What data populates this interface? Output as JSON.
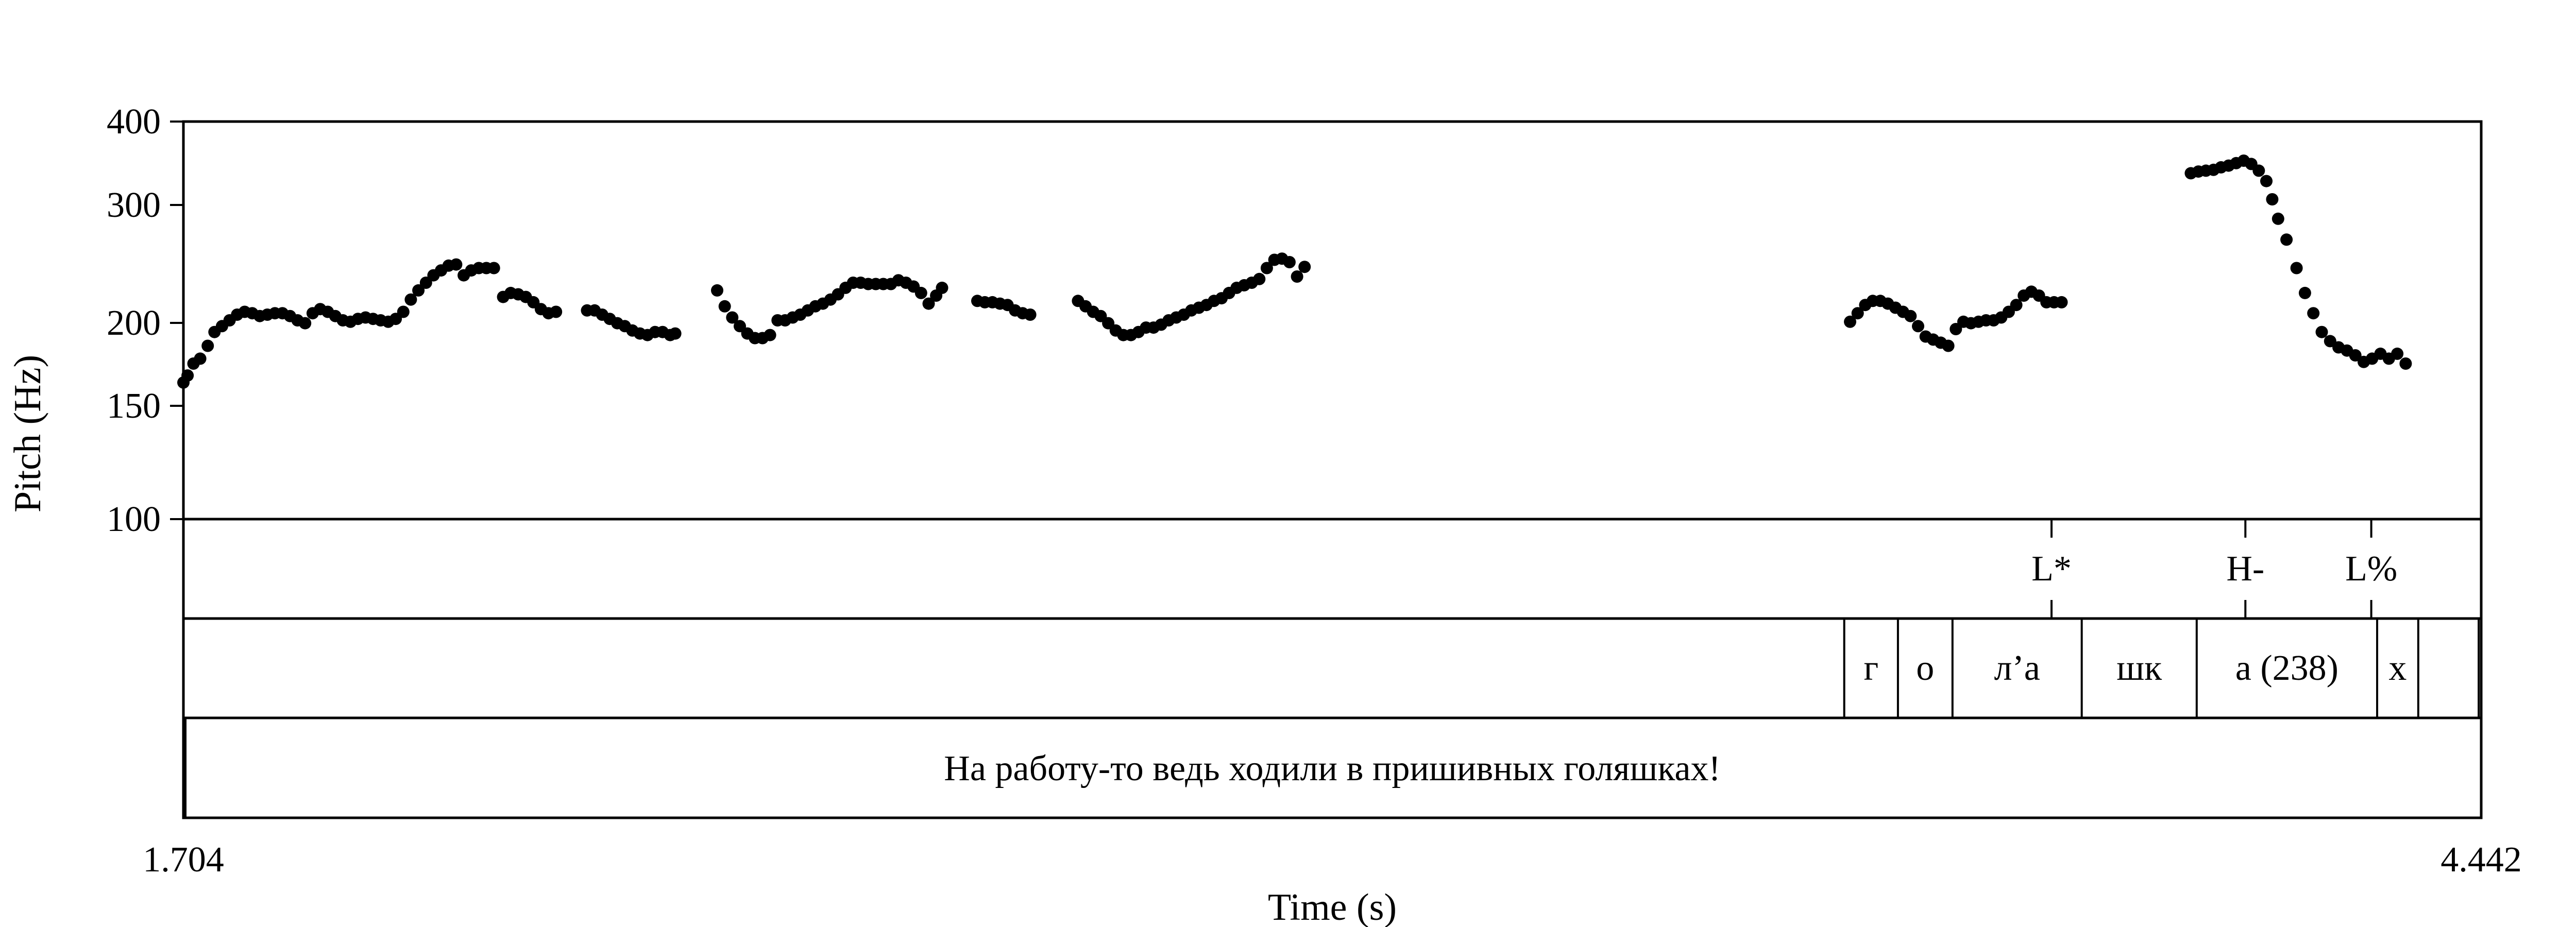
{
  "chart_data": {
    "type": "scatter",
    "xlabel": "Time (s)",
    "ylabel": "Pitch (Hz)",
    "xlim": [
      1.704,
      4.442
    ],
    "ylim": [
      100,
      400
    ],
    "y_scale": "log",
    "x_tick_labels": [
      "1.704",
      "4.442"
    ],
    "y_ticks": [
      100,
      150,
      200,
      300,
      400
    ],
    "y_tick_labels": [
      "100",
      "150",
      "200",
      "300",
      "400"
    ],
    "grid": false,
    "marker_color": "#000000",
    "series": [
      {
        "values": [
          [
            1.704,
            161
          ],
          [
            1.709,
            165
          ],
          [
            1.716,
            172
          ],
          [
            1.724,
            175
          ],
          [
            1.733,
            183
          ],
          [
            1.741,
            192
          ],
          [
            1.75,
            196
          ],
          [
            1.759,
            200
          ],
          [
            1.768,
            204
          ],
          [
            1.777,
            206
          ],
          [
            1.786,
            205
          ],
          [
            1.795,
            203
          ],
          [
            1.804,
            204
          ],
          [
            1.813,
            205
          ],
          [
            1.822,
            205
          ],
          [
            1.831,
            203
          ],
          [
            1.84,
            200
          ],
          [
            1.849,
            198
          ],
          [
            1.858,
            205
          ],
          [
            1.867,
            208
          ],
          [
            1.876,
            206
          ],
          [
            1.885,
            203
          ],
          [
            1.894,
            200
          ],
          [
            1.903,
            199
          ],
          [
            1.912,
            201
          ],
          [
            1.921,
            202
          ],
          [
            1.93,
            201
          ],
          [
            1.939,
            200
          ],
          [
            1.948,
            199
          ],
          [
            1.957,
            201
          ],
          [
            1.966,
            206
          ],
          [
            1.975,
            215
          ],
          [
            1.984,
            222
          ],
          [
            1.993,
            228
          ],
          [
            2.002,
            234
          ],
          [
            2.011,
            238
          ],
          [
            2.02,
            242
          ],
          [
            2.029,
            243
          ],
          [
            2.038,
            234
          ],
          [
            2.047,
            238
          ],
          [
            2.056,
            240
          ],
          [
            2.065,
            240
          ],
          [
            2.074,
            240
          ],
          [
            2.085,
            217
          ],
          [
            2.094,
            220
          ],
          [
            2.103,
            219
          ],
          [
            2.112,
            217
          ],
          [
            2.121,
            213
          ],
          [
            2.13,
            208
          ],
          [
            2.139,
            205
          ],
          [
            2.148,
            206
          ],
          [
            2.185,
            207
          ],
          [
            2.194,
            207
          ],
          [
            2.203,
            204
          ],
          [
            2.212,
            201
          ],
          [
            2.221,
            198
          ],
          [
            2.23,
            196
          ],
          [
            2.239,
            193
          ],
          [
            2.248,
            191
          ],
          [
            2.257,
            190
          ],
          [
            2.266,
            192
          ],
          [
            2.275,
            192
          ],
          [
            2.284,
            190
          ],
          [
            2.29,
            191
          ],
          [
            2.34,
            222
          ],
          [
            2.349,
            210
          ],
          [
            2.358,
            202
          ],
          [
            2.367,
            196
          ],
          [
            2.376,
            191
          ],
          [
            2.385,
            188
          ],
          [
            2.394,
            188
          ],
          [
            2.403,
            190
          ],
          [
            2.412,
            200
          ],
          [
            2.421,
            200
          ],
          [
            2.43,
            202
          ],
          [
            2.439,
            204
          ],
          [
            2.448,
            207
          ],
          [
            2.457,
            210
          ],
          [
            2.466,
            212
          ],
          [
            2.475,
            215
          ],
          [
            2.484,
            219
          ],
          [
            2.493,
            224
          ],
          [
            2.502,
            228
          ],
          [
            2.511,
            228
          ],
          [
            2.52,
            227
          ],
          [
            2.529,
            227
          ],
          [
            2.538,
            227
          ],
          [
            2.547,
            227
          ],
          [
            2.556,
            230
          ],
          [
            2.565,
            228
          ],
          [
            2.574,
            225
          ],
          [
            2.583,
            220
          ],
          [
            2.592,
            212
          ],
          [
            2.601,
            218
          ],
          [
            2.608,
            224
          ],
          [
            2.65,
            214
          ],
          [
            2.659,
            213
          ],
          [
            2.668,
            213
          ],
          [
            2.677,
            212
          ],
          [
            2.686,
            211
          ],
          [
            2.695,
            207
          ],
          [
            2.704,
            205
          ],
          [
            2.713,
            204
          ],
          [
            2.77,
            214
          ],
          [
            2.779,
            210
          ],
          [
            2.788,
            206
          ],
          [
            2.797,
            203
          ],
          [
            2.806,
            198
          ],
          [
            2.815,
            193
          ],
          [
            2.824,
            190
          ],
          [
            2.833,
            190
          ],
          [
            2.842,
            192
          ],
          [
            2.851,
            195
          ],
          [
            2.86,
            195
          ],
          [
            2.869,
            197
          ],
          [
            2.878,
            200
          ],
          [
            2.887,
            202
          ],
          [
            2.896,
            204
          ],
          [
            2.905,
            207
          ],
          [
            2.914,
            209
          ],
          [
            2.923,
            211
          ],
          [
            2.932,
            214
          ],
          [
            2.941,
            216
          ],
          [
            2.95,
            220
          ],
          [
            2.959,
            224
          ],
          [
            2.968,
            226
          ],
          [
            2.977,
            228
          ],
          [
            2.986,
            231
          ],
          [
            2.995,
            240
          ],
          [
            3.004,
            247
          ],
          [
            3.013,
            248
          ],
          [
            3.022,
            245
          ],
          [
            3.031,
            233
          ],
          [
            3.04,
            241
          ],
          [
            3.69,
            199
          ],
          [
            3.699,
            205
          ],
          [
            3.708,
            211
          ],
          [
            3.717,
            214
          ],
          [
            3.726,
            214
          ],
          [
            3.735,
            212
          ],
          [
            3.744,
            209
          ],
          [
            3.753,
            206
          ],
          [
            3.762,
            203
          ],
          [
            3.771,
            196
          ],
          [
            3.78,
            189
          ],
          [
            3.789,
            187
          ],
          [
            3.798,
            185
          ],
          [
            3.807,
            183
          ],
          [
            3.816,
            194
          ],
          [
            3.825,
            199
          ],
          [
            3.834,
            198
          ],
          [
            3.843,
            199
          ],
          [
            3.852,
            200
          ],
          [
            3.861,
            200
          ],
          [
            3.87,
            202
          ],
          [
            3.879,
            206
          ],
          [
            3.888,
            211
          ],
          [
            3.897,
            218
          ],
          [
            3.906,
            221
          ],
          [
            3.915,
            218
          ],
          [
            3.924,
            213
          ],
          [
            3.933,
            213
          ],
          [
            3.942,
            213
          ],
          [
            4.096,
            334
          ],
          [
            4.105,
            336
          ],
          [
            4.114,
            337
          ],
          [
            4.123,
            338
          ],
          [
            4.132,
            341
          ],
          [
            4.141,
            343
          ],
          [
            4.15,
            346
          ],
          [
            4.159,
            349
          ],
          [
            4.168,
            345
          ],
          [
            4.177,
            337
          ],
          [
            4.186,
            325
          ],
          [
            4.193,
            305
          ],
          [
            4.2,
            285
          ],
          [
            4.21,
            265
          ],
          [
            4.222,
            240
          ],
          [
            4.232,
            220
          ],
          [
            4.242,
            205
          ],
          [
            4.252,
            192
          ],
          [
            4.262,
            186
          ],
          [
            4.272,
            182
          ],
          [
            4.282,
            180
          ],
          [
            4.292,
            177
          ],
          [
            4.302,
            173
          ],
          [
            4.312,
            175
          ],
          [
            4.322,
            178
          ],
          [
            4.332,
            175
          ],
          [
            4.342,
            178
          ],
          [
            4.352,
            172
          ]
        ]
      }
    ]
  },
  "tiers": {
    "tones": [
      {
        "label": "L*",
        "time": 3.93
      },
      {
        "label": "H-",
        "time": 4.161
      },
      {
        "label": "L%",
        "time": 4.311
      }
    ],
    "segments": {
      "boundaries": [
        3.683,
        3.747,
        3.812,
        3.966,
        4.103,
        4.318,
        4.367,
        4.439
      ],
      "labels": [
        "г",
        "о",
        "л’а",
        "шк",
        "а (238)",
        "х"
      ]
    },
    "sentence": "На работу-то ведь ходили в пришивных голяшках!"
  }
}
